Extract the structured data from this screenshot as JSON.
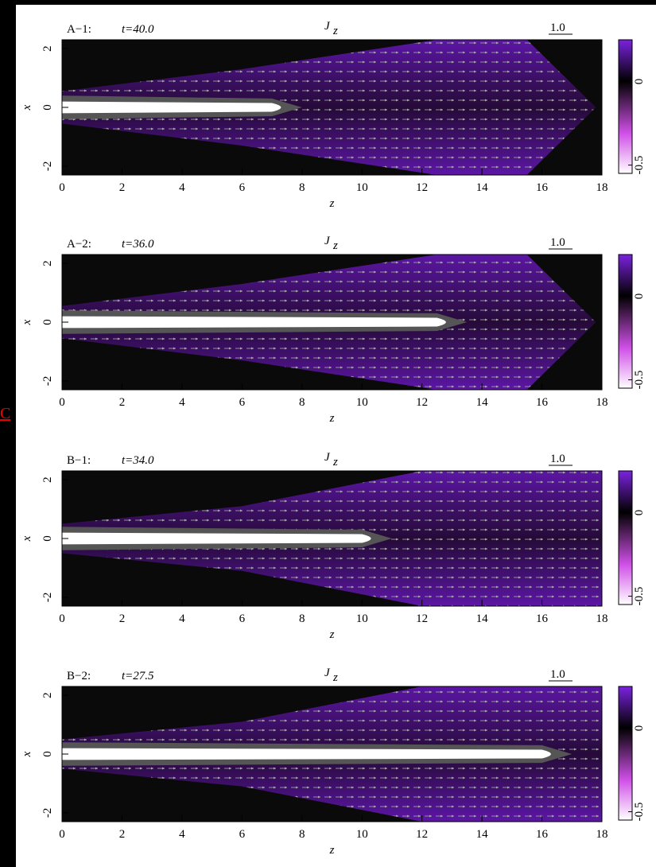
{
  "link_text": "C",
  "chart_data": [
    {
      "type": "heatmap",
      "label": "A−1:",
      "time_label": "t=40.0",
      "title": "J",
      "title_sub": "z",
      "xlabel": "z",
      "ylabel": "x",
      "scale_label": "1.0",
      "xlim": [
        0,
        18
      ],
      "xticks": [
        0,
        2,
        4,
        6,
        8,
        10,
        12,
        14,
        16,
        18
      ],
      "ylim": [
        -2.3,
        2.3
      ],
      "yticks": [
        -2,
        0,
        2
      ],
      "colorbar": {
        "lim": [
          -0.55,
          0.25
        ],
        "ticks": [
          0,
          -0.5
        ]
      }
    },
    {
      "type": "heatmap",
      "label": "A−2:",
      "time_label": "t=36.0",
      "title": "J",
      "title_sub": "z",
      "xlabel": "z",
      "ylabel": "x",
      "scale_label": "1.0",
      "xlim": [
        0,
        18
      ],
      "xticks": [
        0,
        2,
        4,
        6,
        8,
        10,
        12,
        14,
        16,
        18
      ],
      "ylim": [
        -2.3,
        2.3
      ],
      "yticks": [
        -2,
        0,
        2
      ],
      "colorbar": {
        "lim": [
          -0.55,
          0.25
        ],
        "ticks": [
          0,
          -0.5
        ]
      }
    },
    {
      "type": "heatmap",
      "label": "B−1:",
      "time_label": "t=34.0",
      "title": "J",
      "title_sub": "z",
      "xlabel": "z",
      "ylabel": "x",
      "scale_label": "1.0",
      "xlim": [
        0,
        18
      ],
      "xticks": [
        0,
        2,
        4,
        6,
        8,
        10,
        12,
        14,
        16,
        18
      ],
      "ylim": [
        -2.3,
        2.3
      ],
      "yticks": [
        -2,
        0,
        2
      ],
      "colorbar": {
        "lim": [
          -0.55,
          0.25
        ],
        "ticks": [
          0,
          -0.5
        ]
      }
    },
    {
      "type": "heatmap",
      "label": "B−2:",
      "time_label": "t=27.5",
      "title": "J",
      "title_sub": "z",
      "xlabel": "z",
      "ylabel": "x",
      "scale_label": "1.0",
      "xlim": [
        0,
        18
      ],
      "xticks": [
        0,
        2,
        4,
        6,
        8,
        10,
        12,
        14,
        16,
        18
      ],
      "ylim": [
        -2.3,
        2.3
      ],
      "yticks": [
        -2,
        0,
        2
      ],
      "colorbar": {
        "lim": [
          -0.55,
          0.25
        ],
        "ticks": [
          0,
          -0.5
        ]
      }
    }
  ]
}
